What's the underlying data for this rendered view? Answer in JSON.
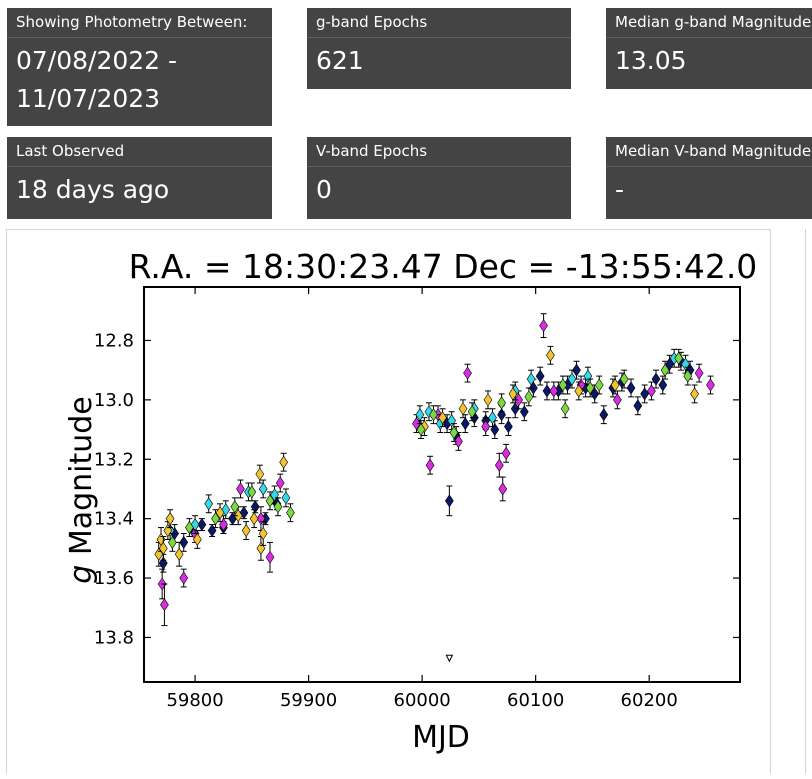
{
  "stats": {
    "range_label": "Showing Photometry Between:",
    "range_line1": "07/08/2022 -",
    "range_line2": "11/07/2023",
    "g_epochs_label": "g-band Epochs",
    "g_epochs_value": "621",
    "g_median_label": "Median g-band Magnitude",
    "g_median_value": "13.05",
    "last_observed_label": "Last Observed",
    "last_observed_value": "18 days ago",
    "v_epochs_label": "V-band Epochs",
    "v_epochs_value": "0",
    "v_median_label": "Median V-band Magnitude",
    "v_median_value": "-"
  },
  "colors": {
    "panel_bg": "#444444",
    "camera_navy": "#0b1866",
    "camera_magenta": "#d62ee0",
    "camera_cyan": "#35d7e8",
    "camera_gold": "#f2c430",
    "camera_green": "#7ad943"
  },
  "chart_data": {
    "type": "scatter",
    "title": "R.A. = 18:30:23.47    Dec = -13:55:42.0",
    "xlabel": "MJD",
    "ylabel_italic": "g",
    "ylabel_rest": " Magnitude",
    "xlim": [
      59755,
      60280
    ],
    "ylim": [
      13.95,
      12.62
    ],
    "y_inverted": true,
    "xticks": [
      59800,
      59900,
      60000,
      60100,
      60200
    ],
    "yticks": [
      12.8,
      13.0,
      13.2,
      13.4,
      13.6,
      13.8
    ],
    "grid": false,
    "marker": "diamond with error bars",
    "series": [
      {
        "color": "#0b1866",
        "points": [
          [
            59772,
            13.55,
            0.03
          ],
          [
            59782,
            13.45,
            0.03
          ],
          [
            59790,
            13.48,
            0.03
          ],
          [
            59798,
            13.44,
            0.02
          ],
          [
            59806,
            13.42,
            0.02
          ],
          [
            59815,
            13.44,
            0.02
          ],
          [
            59825,
            13.43,
            0.02
          ],
          [
            59833,
            13.4,
            0.02
          ],
          [
            59843,
            13.38,
            0.02
          ],
          [
            59853,
            13.36,
            0.02
          ],
          [
            59862,
            13.4,
            0.02
          ],
          [
            59872,
            13.35,
            0.02
          ],
          [
            60022,
            13.08,
            0.03
          ],
          [
            60024,
            13.34,
            0.05
          ],
          [
            60030,
            13.12,
            0.03
          ],
          [
            60038,
            13.08,
            0.03
          ],
          [
            60046,
            13.06,
            0.03
          ],
          [
            60056,
            13.07,
            0.03
          ],
          [
            60064,
            13.1,
            0.03
          ],
          [
            60070,
            13.05,
            0.03
          ],
          [
            60076,
            13.09,
            0.03
          ],
          [
            60082,
            13.03,
            0.03
          ],
          [
            60090,
            13.04,
            0.03
          ],
          [
            60098,
            12.96,
            0.03
          ],
          [
            60104,
            12.92,
            0.03
          ],
          [
            60110,
            12.97,
            0.03
          ],
          [
            60120,
            12.97,
            0.03
          ],
          [
            60128,
            12.95,
            0.03
          ],
          [
            60136,
            12.9,
            0.03
          ],
          [
            60144,
            12.96,
            0.03
          ],
          [
            60152,
            12.98,
            0.03
          ],
          [
            60160,
            13.05,
            0.03
          ],
          [
            60168,
            12.96,
            0.03
          ],
          [
            60176,
            12.94,
            0.03
          ],
          [
            60184,
            12.96,
            0.03
          ],
          [
            60190,
            13.02,
            0.03
          ],
          [
            60196,
            12.98,
            0.03
          ],
          [
            60206,
            12.93,
            0.03
          ],
          [
            60212,
            12.95,
            0.03
          ],
          [
            60218,
            12.88,
            0.03
          ],
          [
            60228,
            12.87,
            0.03
          ],
          [
            60236,
            12.9,
            0.03
          ]
        ]
      },
      {
        "color": "#d62ee0",
        "points": [
          [
            59771,
            13.62,
            0.05
          ],
          [
            59773,
            13.69,
            0.07
          ],
          [
            59790,
            13.6,
            0.03
          ],
          [
            59800,
            13.45,
            0.03
          ],
          [
            59825,
            13.42,
            0.03
          ],
          [
            59840,
            13.3,
            0.03
          ],
          [
            59858,
            13.4,
            0.04
          ],
          [
            59866,
            13.53,
            0.05
          ],
          [
            59875,
            13.28,
            0.03
          ],
          [
            59995,
            13.08,
            0.03
          ],
          [
            60007,
            13.22,
            0.03
          ],
          [
            60014,
            13.05,
            0.03
          ],
          [
            60032,
            13.14,
            0.03
          ],
          [
            60040,
            12.91,
            0.03
          ],
          [
            60056,
            13.09,
            0.03
          ],
          [
            60068,
            13.22,
            0.04
          ],
          [
            60071,
            13.3,
            0.04
          ],
          [
            60074,
            13.18,
            0.03
          ],
          [
            60085,
            13.0,
            0.03
          ],
          [
            60107,
            12.75,
            0.04
          ],
          [
            60116,
            12.97,
            0.03
          ],
          [
            60140,
            12.95,
            0.03
          ],
          [
            60172,
            13.0,
            0.03
          ],
          [
            60202,
            12.97,
            0.03
          ],
          [
            60244,
            12.91,
            0.03
          ],
          [
            60254,
            12.95,
            0.03
          ]
        ]
      },
      {
        "color": "#35d7e8",
        "points": [
          [
            59778,
            13.44,
            0.03
          ],
          [
            59800,
            13.42,
            0.03
          ],
          [
            59812,
            13.35,
            0.03
          ],
          [
            59827,
            13.37,
            0.03
          ],
          [
            59847,
            13.31,
            0.03
          ],
          [
            59860,
            13.3,
            0.03
          ],
          [
            59870,
            13.32,
            0.03
          ],
          [
            59880,
            13.33,
            0.03
          ],
          [
            59998,
            13.05,
            0.03
          ],
          [
            60006,
            13.04,
            0.03
          ],
          [
            60016,
            13.08,
            0.03
          ],
          [
            60026,
            13.07,
            0.03
          ],
          [
            60046,
            13.03,
            0.03
          ],
          [
            60062,
            13.06,
            0.03
          ],
          [
            60082,
            12.97,
            0.03
          ],
          [
            60096,
            12.93,
            0.03
          ],
          [
            60132,
            12.93,
            0.03
          ],
          [
            60146,
            12.92,
            0.03
          ],
          [
            60222,
            12.86,
            0.03
          ],
          [
            60232,
            12.88,
            0.03
          ]
        ]
      },
      {
        "color": "#f2c430",
        "points": [
          [
            59768,
            13.52,
            0.04
          ],
          [
            59770,
            13.47,
            0.04
          ],
          [
            59772,
            13.5,
            0.04
          ],
          [
            59776,
            13.44,
            0.03
          ],
          [
            59778,
            13.4,
            0.03
          ],
          [
            59786,
            13.52,
            0.04
          ],
          [
            59802,
            13.47,
            0.03
          ],
          [
            59822,
            13.38,
            0.03
          ],
          [
            59838,
            13.39,
            0.03
          ],
          [
            59845,
            13.44,
            0.03
          ],
          [
            59852,
            13.4,
            0.03
          ],
          [
            59857,
            13.25,
            0.03
          ],
          [
            59858,
            13.5,
            0.04
          ],
          [
            59860,
            13.45,
            0.04
          ],
          [
            59878,
            13.21,
            0.03
          ],
          [
            60002,
            13.09,
            0.03
          ],
          [
            60018,
            13.06,
            0.03
          ],
          [
            60036,
            13.03,
            0.03
          ],
          [
            60058,
            13.0,
            0.03
          ],
          [
            60080,
            12.98,
            0.03
          ],
          [
            60113,
            12.85,
            0.03
          ],
          [
            60138,
            12.97,
            0.03
          ],
          [
            60170,
            12.95,
            0.03
          ],
          [
            60240,
            12.98,
            0.03
          ]
        ]
      },
      {
        "color": "#7ad943",
        "points": [
          [
            59780,
            13.48,
            0.03
          ],
          [
            59795,
            13.43,
            0.03
          ],
          [
            59818,
            13.4,
            0.03
          ],
          [
            59835,
            13.36,
            0.03
          ],
          [
            59850,
            13.31,
            0.03
          ],
          [
            59866,
            13.34,
            0.03
          ],
          [
            59873,
            13.36,
            0.03
          ],
          [
            59884,
            13.38,
            0.03
          ],
          [
            59999,
            13.1,
            0.03
          ],
          [
            60010,
            13.05,
            0.03
          ],
          [
            60028,
            13.11,
            0.03
          ],
          [
            60044,
            13.04,
            0.03
          ],
          [
            60070,
            13.01,
            0.03
          ],
          [
            60094,
            12.99,
            0.03
          ],
          [
            60124,
            12.95,
            0.03
          ],
          [
            60126,
            13.03,
            0.03
          ],
          [
            60148,
            12.96,
            0.03
          ],
          [
            60156,
            12.95,
            0.03
          ],
          [
            60178,
            12.93,
            0.03
          ],
          [
            60214,
            12.9,
            0.03
          ],
          [
            60226,
            12.86,
            0.03
          ],
          [
            60234,
            12.92,
            0.03
          ]
        ]
      }
    ],
    "upper_limit": {
      "x": 60024,
      "y": 13.87,
      "color": "#ffffff"
    }
  }
}
